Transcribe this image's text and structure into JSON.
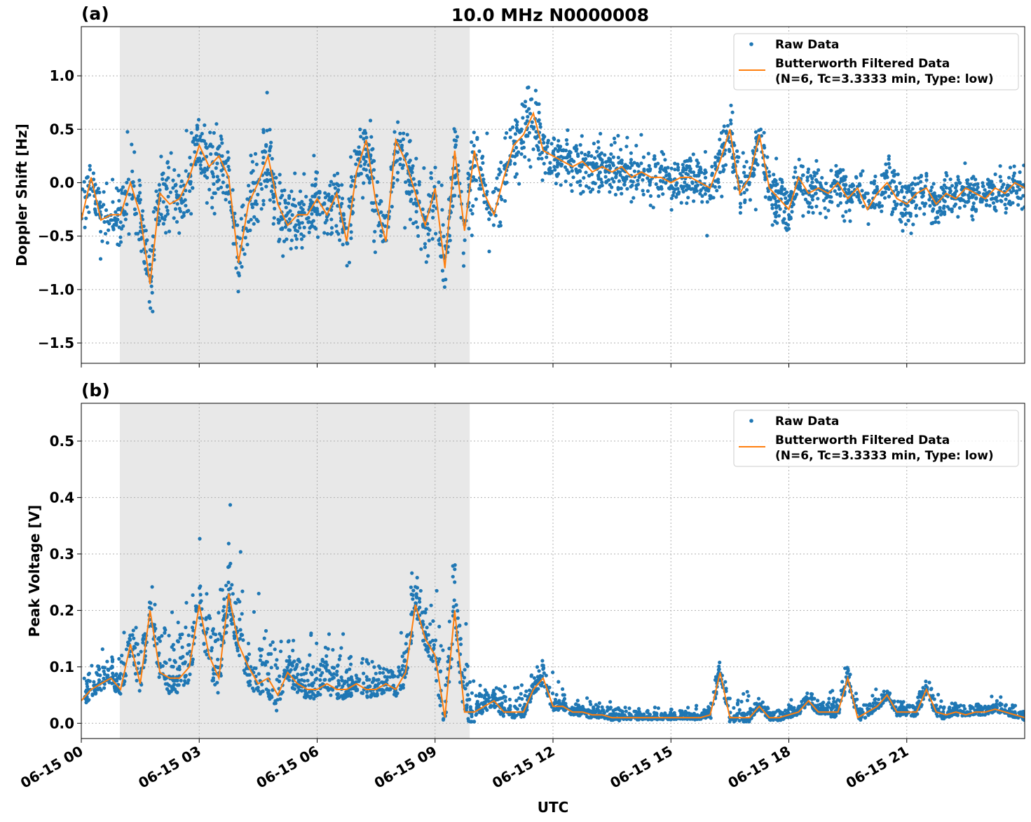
{
  "title": "10.0 MHz N0000008",
  "xlabel": "UTC",
  "x_tick_labels": [
    "06-15 00",
    "06-15 03",
    "06-15 06",
    "06-15 09",
    "06-15 12",
    "06-15 15",
    "06-15 18",
    "06-15 21"
  ],
  "colors": {
    "raw": "#1f77b4",
    "filtered": "#ff7f0e",
    "shade": "#e8e8e8"
  },
  "chart_data": [
    {
      "type": "scatter",
      "panel_label": "(a)",
      "ylabel": "Doppler Shift [Hz]",
      "xlim_hours": [
        0,
        24
      ],
      "ylim": [
        -1.69,
        1.46
      ],
      "y_ticks": [
        1.0,
        0.5,
        0.0,
        -0.5,
        -1.0,
        -1.5
      ],
      "y_tick_labels": [
        "1.0",
        "0.5",
        "0.0",
        "−0.5",
        "−1.0",
        "−1.5"
      ],
      "grid": true,
      "legend": {
        "position": "top-right",
        "raw": "Raw Data",
        "filtered_line1": "Butterworth Filtered Data",
        "filtered_line2": "(N=6, Tc=3.3333 min, Type: low)"
      },
      "shaded_span_hours": [
        0.98,
        9.88
      ],
      "filtered_step_hours": 0.25,
      "filtered": [
        -0.35,
        0.05,
        -0.35,
        -0.3,
        -0.3,
        0.0,
        -0.3,
        -0.95,
        -0.1,
        -0.2,
        -0.15,
        0.05,
        0.35,
        0.15,
        0.25,
        0.05,
        -0.75,
        -0.2,
        0.0,
        0.25,
        -0.2,
        -0.4,
        -0.3,
        -0.3,
        -0.15,
        -0.3,
        -0.1,
        -0.55,
        0.1,
        0.4,
        -0.2,
        -0.55,
        0.4,
        0.2,
        -0.1,
        -0.4,
        -0.05,
        -0.8,
        0.3,
        -0.45,
        0.3,
        -0.1,
        -0.3,
        0.05,
        0.35,
        0.45,
        0.65,
        0.3,
        0.25,
        0.2,
        0.15,
        0.2,
        0.1,
        0.15,
        0.1,
        0.15,
        0.05,
        0.1,
        0.05,
        0.05,
        0.0,
        0.05,
        0.05,
        0.0,
        -0.05,
        0.2,
        0.5,
        -0.1,
        0.05,
        0.45,
        -0.05,
        -0.15,
        -0.25,
        0.05,
        -0.1,
        -0.05,
        -0.1,
        0.0,
        -0.15,
        -0.05,
        -0.25,
        -0.1,
        0.0,
        -0.15,
        -0.2,
        -0.1,
        -0.05,
        -0.2,
        -0.1,
        -0.15,
        -0.05,
        -0.1,
        -0.15,
        -0.05,
        -0.1,
        0.0,
        -0.05
      ],
      "raw_spread_hourly": [
        0.25,
        0.3,
        0.35,
        0.3,
        0.35,
        0.3,
        0.3,
        0.3,
        0.3,
        0.35,
        0.3,
        0.3,
        0.2,
        0.2,
        0.2,
        0.2,
        0.25,
        0.25,
        0.2,
        0.2,
        0.2,
        0.18,
        0.18,
        0.18,
        0.18
      ]
    },
    {
      "type": "scatter",
      "panel_label": "(b)",
      "ylabel": "Peak Voltage [V]",
      "xlim_hours": [
        0,
        24
      ],
      "ylim": [
        -0.027,
        0.567
      ],
      "y_ticks": [
        0.0,
        0.1,
        0.2,
        0.3,
        0.4,
        0.5
      ],
      "y_tick_labels": [
        "0.0",
        "0.1",
        "0.2",
        "0.3",
        "0.4",
        "0.5"
      ],
      "grid": true,
      "legend": {
        "position": "top-right",
        "raw": "Raw Data",
        "filtered_line1": "Butterworth Filtered Data",
        "filtered_line2": "(N=6, Tc=3.3333 min, Type: low)"
      },
      "shaded_span_hours": [
        0.98,
        9.88
      ],
      "filtered_step_hours": 0.25,
      "filtered": [
        0.04,
        0.06,
        0.07,
        0.08,
        0.06,
        0.14,
        0.07,
        0.2,
        0.09,
        0.08,
        0.08,
        0.1,
        0.21,
        0.12,
        0.08,
        0.23,
        0.14,
        0.1,
        0.07,
        0.08,
        0.05,
        0.09,
        0.07,
        0.06,
        0.06,
        0.07,
        0.06,
        0.06,
        0.07,
        0.06,
        0.06,
        0.07,
        0.06,
        0.09,
        0.21,
        0.15,
        0.12,
        0.01,
        0.2,
        0.02,
        0.02,
        0.03,
        0.04,
        0.02,
        0.02,
        0.02,
        0.06,
        0.08,
        0.03,
        0.03,
        0.02,
        0.02,
        0.015,
        0.015,
        0.01,
        0.01,
        0.01,
        0.01,
        0.01,
        0.01,
        0.01,
        0.01,
        0.01,
        0.01,
        0.015,
        0.09,
        0.01,
        0.01,
        0.01,
        0.03,
        0.01,
        0.01,
        0.015,
        0.02,
        0.04,
        0.02,
        0.02,
        0.02,
        0.08,
        0.01,
        0.02,
        0.03,
        0.05,
        0.02,
        0.02,
        0.02,
        0.06,
        0.02,
        0.015,
        0.02,
        0.015,
        0.02,
        0.02,
        0.025,
        0.02,
        0.015,
        0.01
      ],
      "raw_spread_hourly": [
        0.04,
        0.06,
        0.08,
        0.09,
        0.09,
        0.05,
        0.05,
        0.04,
        0.06,
        0.1,
        0.03,
        0.03,
        0.02,
        0.015,
        0.01,
        0.01,
        0.03,
        0.015,
        0.015,
        0.025,
        0.02,
        0.025,
        0.015,
        0.015,
        0.015
      ]
    }
  ]
}
